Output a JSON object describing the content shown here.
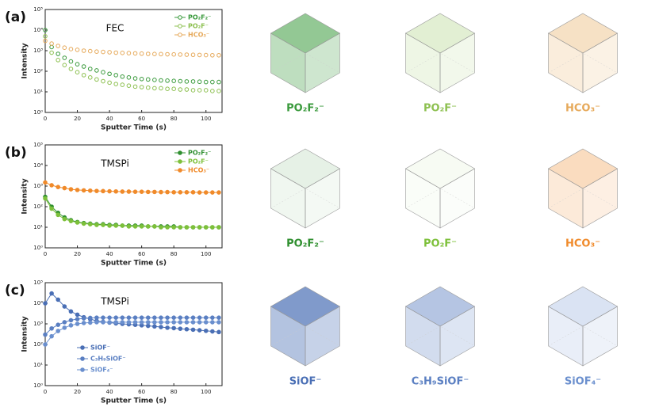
{
  "chart_data": [
    {
      "type": "line",
      "panel": "(a)",
      "annotation": "FEC",
      "xlabel": "Sputter Time (s)",
      "ylabel": "Intensity",
      "yscale": "log",
      "line": false,
      "marker_fill": "open",
      "legend": "upper right",
      "xlim": [
        0,
        110
      ],
      "xticks": [
        0,
        20,
        40,
        60,
        80,
        100
      ],
      "ylim": [
        1,
        100000
      ],
      "yticks": [
        {
          "value": 1,
          "label": "10⁰"
        },
        {
          "value": 10,
          "label": "10¹"
        },
        {
          "value": 100,
          "label": "10²"
        },
        {
          "value": 1000,
          "label": "10³"
        },
        {
          "value": 10000,
          "label": "10⁴"
        },
        {
          "value": 100000,
          "label": "10⁵"
        }
      ],
      "x": [
        0,
        4,
        8,
        12,
        16,
        20,
        24,
        28,
        32,
        36,
        40,
        44,
        48,
        52,
        56,
        60,
        64,
        68,
        72,
        76,
        80,
        84,
        88,
        92,
        96,
        100,
        104,
        108
      ],
      "series": [
        {
          "name": "PO₂F₂⁻",
          "color": "#3a9a3c",
          "values": [
            10000,
            1500,
            700,
            450,
            300,
            220,
            170,
            130,
            110,
            90,
            75,
            65,
            55,
            50,
            45,
            42,
            40,
            38,
            36,
            35,
            34,
            33,
            32,
            32,
            31,
            30,
            30,
            30
          ]
        },
        {
          "name": "PO₂F⁻",
          "color": "#8dc050",
          "values": [
            5000,
            800,
            350,
            200,
            130,
            90,
            65,
            50,
            40,
            33,
            28,
            24,
            22,
            20,
            18,
            17,
            16,
            15,
            15,
            14,
            14,
            13,
            13,
            12,
            12,
            12,
            11,
            11
          ]
        },
        {
          "name": "HCO₃⁻",
          "color": "#e6a95a",
          "values": [
            3000,
            2200,
            1700,
            1400,
            1200,
            1100,
            1000,
            950,
            900,
            870,
            840,
            800,
            780,
            760,
            740,
            720,
            700,
            690,
            680,
            670,
            660,
            650,
            640,
            630,
            620,
            610,
            600,
            600
          ]
        }
      ]
    },
    {
      "type": "line",
      "panel": "(b)",
      "annotation": "TMSPi",
      "xlabel": "Sputter Time (s)",
      "ylabel": "Intensity",
      "yscale": "log",
      "line": true,
      "marker_fill": "filled",
      "legend": "upper right",
      "xlim": [
        0,
        110
      ],
      "xticks": [
        0,
        20,
        40,
        60,
        80,
        100
      ],
      "ylim": [
        1,
        100000
      ],
      "yticks": [
        {
          "value": 1,
          "label": "10⁰"
        },
        {
          "value": 10,
          "label": "10¹"
        },
        {
          "value": 100,
          "label": "10²"
        },
        {
          "value": 1000,
          "label": "10³"
        },
        {
          "value": 10000,
          "label": "10⁴"
        },
        {
          "value": 100000,
          "label": "10⁵"
        }
      ],
      "x": [
        0,
        4,
        8,
        12,
        16,
        20,
        24,
        28,
        32,
        36,
        40,
        44,
        48,
        52,
        56,
        60,
        64,
        68,
        72,
        76,
        80,
        84,
        88,
        92,
        96,
        100,
        104,
        108
      ],
      "series": [
        {
          "name": "PO₂F₂⁻",
          "color": "#2f8f2f",
          "values": [
            300,
            100,
            50,
            30,
            22,
            18,
            16,
            15,
            14,
            14,
            13,
            13,
            12,
            12,
            12,
            12,
            11,
            11,
            11,
            11,
            11,
            10,
            10,
            10,
            10,
            10,
            10,
            10
          ]
        },
        {
          "name": "PO₂F⁻",
          "color": "#7dc03a",
          "values": [
            250,
            80,
            40,
            25,
            20,
            17,
            15,
            14,
            13,
            13,
            12,
            12,
            12,
            11,
            11,
            11,
            11,
            11,
            10,
            10,
            10,
            10,
            10,
            10,
            10,
            10,
            10,
            10
          ]
        },
        {
          "name": "HCO₃⁻",
          "color": "#f08a2a",
          "values": [
            1500,
            1100,
            900,
            800,
            700,
            650,
            620,
            600,
            580,
            570,
            560,
            550,
            540,
            540,
            530,
            530,
            520,
            520,
            510,
            510,
            500,
            500,
            500,
            500,
            490,
            490,
            490,
            490
          ]
        }
      ]
    },
    {
      "type": "line",
      "panel": "(c)",
      "annotation": "TMSPi",
      "xlabel": "Sputter Time (s)",
      "ylabel": "Intensity",
      "yscale": "log",
      "line": true,
      "marker_fill": "filled",
      "legend": "lower left",
      "xlim": [
        0,
        110
      ],
      "xticks": [
        0,
        20,
        40,
        60,
        80,
        100
      ],
      "ylim": [
        1,
        100000
      ],
      "yticks": [
        {
          "value": 1,
          "label": "10⁰"
        },
        {
          "value": 10,
          "label": "10¹"
        },
        {
          "value": 100,
          "label": "10²"
        },
        {
          "value": 1000,
          "label": "10³"
        },
        {
          "value": 10000,
          "label": "10⁴"
        },
        {
          "value": 100000,
          "label": "10⁵"
        }
      ],
      "x": [
        0,
        4,
        8,
        12,
        16,
        20,
        24,
        28,
        32,
        36,
        40,
        44,
        48,
        52,
        56,
        60,
        64,
        68,
        72,
        76,
        80,
        84,
        88,
        92,
        96,
        100,
        104,
        108
      ],
      "series": [
        {
          "name": "SiOF⁻",
          "color": "#4a6fb5",
          "values": [
            10000,
            30000,
            15000,
            7000,
            4000,
            2800,
            2100,
            1700,
            1400,
            1250,
            1150,
            1050,
            1000,
            950,
            900,
            850,
            800,
            750,
            700,
            650,
            620,
            580,
            550,
            520,
            490,
            460,
            430,
            400
          ]
        },
        {
          "name": "C₃H₉SiOF⁻",
          "color": "#5a7fc2",
          "values": [
            300,
            600,
            900,
            1200,
            1500,
            1700,
            1850,
            1950,
            2000,
            2000,
            2000,
            2000,
            2000,
            2000,
            2000,
            2000,
            2000,
            2000,
            2000,
            2000,
            2000,
            2000,
            2000,
            2000,
            2000,
            2000,
            2000,
            2000
          ]
        },
        {
          "name": "SiOF₄⁻",
          "color": "#6a8fce",
          "values": [
            100,
            250,
            450,
            650,
            850,
            1000,
            1100,
            1150,
            1200,
            1200,
            1200,
            1200,
            1200,
            1200,
            1200,
            1200,
            1200,
            1200,
            1200,
            1200,
            1200,
            1200,
            1200,
            1200,
            1200,
            1200,
            1200,
            1200
          ]
        }
      ]
    }
  ]
}
